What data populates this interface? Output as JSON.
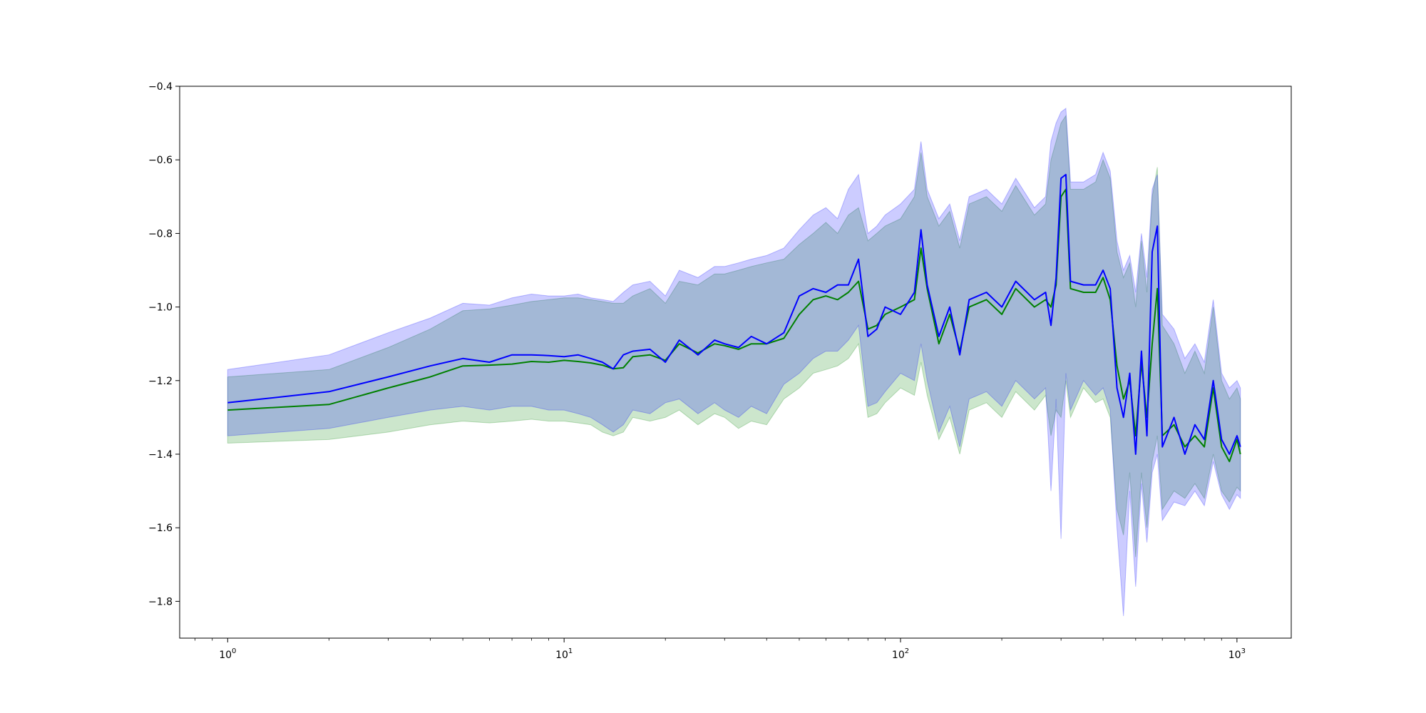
{
  "chart_data": {
    "type": "line",
    "title": "",
    "xlabel": "",
    "ylabel": "",
    "x_scale": "log",
    "xlim": [
      0.72,
      1450
    ],
    "ylim": [
      -1.9,
      -0.4
    ],
    "grid": false,
    "x_ticks": [
      {
        "value": 1,
        "base": "10",
        "exp": "0"
      },
      {
        "value": 10,
        "base": "10",
        "exp": "1"
      },
      {
        "value": 100,
        "base": "10",
        "exp": "2"
      },
      {
        "value": 1000,
        "base": "10",
        "exp": "3"
      }
    ],
    "y_ticks": [
      {
        "value": -0.4,
        "label": "−0.4"
      },
      {
        "value": -0.6,
        "label": "−0.6"
      },
      {
        "value": -0.8,
        "label": "−0.8"
      },
      {
        "value": -1.0,
        "label": "−1.0"
      },
      {
        "value": -1.2,
        "label": "−1.2"
      },
      {
        "value": -1.4,
        "label": "−1.4"
      },
      {
        "value": -1.6,
        "label": "−1.6"
      },
      {
        "value": -1.8,
        "label": "−1.8"
      }
    ],
    "x": [
      1,
      2,
      3,
      4,
      5,
      6,
      7,
      8,
      9,
      10,
      11,
      12,
      13,
      14,
      15,
      16,
      18,
      20,
      22,
      25,
      28,
      30,
      33,
      36,
      40,
      45,
      50,
      55,
      60,
      65,
      70,
      75,
      80,
      85,
      90,
      100,
      110,
      115,
      120,
      130,
      140,
      150,
      160,
      180,
      200,
      220,
      250,
      270,
      280,
      290,
      300,
      310,
      320,
      350,
      380,
      400,
      420,
      440,
      460,
      480,
      500,
      520,
      540,
      560,
      580,
      600,
      650,
      700,
      750,
      800,
      850,
      900,
      950,
      1000,
      1024
    ],
    "series": [
      {
        "color": "#008000",
        "fill_color": "#008000",
        "fill_opacity": 0.2,
        "values": [
          -1.28,
          -1.265,
          -1.22,
          -1.19,
          -1.16,
          -1.158,
          -1.155,
          -1.148,
          -1.15,
          -1.145,
          -1.148,
          -1.152,
          -1.158,
          -1.168,
          -1.165,
          -1.135,
          -1.13,
          -1.145,
          -1.1,
          -1.125,
          -1.1,
          -1.105,
          -1.115,
          -1.1,
          -1.1,
          -1.085,
          -1.02,
          -0.98,
          -0.97,
          -0.98,
          -0.96,
          -0.93,
          -1.06,
          -1.05,
          -1.02,
          -1.0,
          -0.98,
          -0.84,
          -0.95,
          -1.1,
          -1.02,
          -1.12,
          -1.0,
          -0.98,
          -1.02,
          -0.95,
          -1.0,
          -0.98,
          -1.0,
          -0.94,
          -0.7,
          -0.68,
          -0.95,
          -0.96,
          -0.96,
          -0.92,
          -0.98,
          -1.16,
          -1.25,
          -1.2,
          -1.35,
          -1.15,
          -1.3,
          -1.1,
          -0.95,
          -1.35,
          -1.32,
          -1.38,
          -1.35,
          -1.38,
          -1.22,
          -1.38,
          -1.42,
          -1.36,
          -1.4
        ],
        "lower": [
          -1.37,
          -1.36,
          -1.34,
          -1.32,
          -1.31,
          -1.315,
          -1.31,
          -1.305,
          -1.31,
          -1.31,
          -1.315,
          -1.32,
          -1.34,
          -1.35,
          -1.34,
          -1.3,
          -1.31,
          -1.3,
          -1.28,
          -1.32,
          -1.29,
          -1.3,
          -1.33,
          -1.31,
          -1.32,
          -1.25,
          -1.22,
          -1.18,
          -1.17,
          -1.16,
          -1.14,
          -1.1,
          -1.3,
          -1.29,
          -1.26,
          -1.22,
          -1.24,
          -1.15,
          -1.24,
          -1.36,
          -1.3,
          -1.4,
          -1.28,
          -1.26,
          -1.3,
          -1.23,
          -1.28,
          -1.24,
          -1.35,
          -1.28,
          -1.3,
          -1.2,
          -1.3,
          -1.22,
          -1.26,
          -1.25,
          -1.3,
          -1.55,
          -1.62,
          -1.45,
          -1.68,
          -1.45,
          -1.6,
          -1.42,
          -1.35,
          -1.55,
          -1.5,
          -1.52,
          -1.48,
          -1.52,
          -1.4,
          -1.5,
          -1.53,
          -1.49,
          -1.5
        ],
        "upper": [
          -1.19,
          -1.17,
          -1.11,
          -1.06,
          -1.01,
          -1.005,
          -0.995,
          -0.985,
          -0.98,
          -0.975,
          -0.975,
          -0.98,
          -0.985,
          -0.99,
          -0.99,
          -0.97,
          -0.95,
          -0.99,
          -0.93,
          -0.94,
          -0.91,
          -0.91,
          -0.9,
          -0.89,
          -0.88,
          -0.87,
          -0.83,
          -0.8,
          -0.77,
          -0.8,
          -0.75,
          -0.73,
          -0.82,
          -0.8,
          -0.78,
          -0.76,
          -0.7,
          -0.58,
          -0.7,
          -0.78,
          -0.74,
          -0.84,
          -0.72,
          -0.7,
          -0.74,
          -0.67,
          -0.75,
          -0.72,
          -0.6,
          -0.55,
          -0.5,
          -0.48,
          -0.68,
          -0.68,
          -0.66,
          -0.6,
          -0.65,
          -0.85,
          -0.92,
          -0.88,
          -1.0,
          -0.82,
          -0.96,
          -0.7,
          -0.62,
          -1.05,
          -1.1,
          -1.18,
          -1.12,
          -1.18,
          -1.0,
          -1.2,
          -1.25,
          -1.22,
          -1.25
        ]
      },
      {
        "color": "#0000ff",
        "fill_color": "#0000ff",
        "fill_opacity": 0.2,
        "values": [
          -1.26,
          -1.23,
          -1.19,
          -1.16,
          -1.14,
          -1.15,
          -1.13,
          -1.13,
          -1.132,
          -1.135,
          -1.13,
          -1.14,
          -1.15,
          -1.168,
          -1.13,
          -1.12,
          -1.115,
          -1.15,
          -1.09,
          -1.13,
          -1.09,
          -1.1,
          -1.11,
          -1.08,
          -1.1,
          -1.07,
          -0.97,
          -0.95,
          -0.96,
          -0.94,
          -0.94,
          -0.87,
          -1.08,
          -1.06,
          -1.0,
          -1.02,
          -0.96,
          -0.79,
          -0.94,
          -1.08,
          -1.0,
          -1.13,
          -0.98,
          -0.96,
          -1.0,
          -0.93,
          -0.98,
          -0.96,
          -1.05,
          -0.92,
          -0.65,
          -0.64,
          -0.93,
          -0.94,
          -0.94,
          -0.9,
          -0.95,
          -1.22,
          -1.3,
          -1.18,
          -1.4,
          -1.12,
          -1.35,
          -0.85,
          -0.78,
          -1.38,
          -1.3,
          -1.4,
          -1.32,
          -1.36,
          -1.2,
          -1.36,
          -1.4,
          -1.35,
          -1.38
        ],
        "lower": [
          -1.35,
          -1.33,
          -1.3,
          -1.28,
          -1.27,
          -1.28,
          -1.27,
          -1.27,
          -1.28,
          -1.28,
          -1.29,
          -1.3,
          -1.32,
          -1.34,
          -1.32,
          -1.28,
          -1.29,
          -1.26,
          -1.25,
          -1.29,
          -1.26,
          -1.28,
          -1.3,
          -1.27,
          -1.29,
          -1.21,
          -1.18,
          -1.14,
          -1.12,
          -1.12,
          -1.09,
          -1.05,
          -1.27,
          -1.26,
          -1.23,
          -1.18,
          -1.2,
          -1.1,
          -1.2,
          -1.34,
          -1.27,
          -1.38,
          -1.25,
          -1.23,
          -1.27,
          -1.2,
          -1.25,
          -1.22,
          -1.5,
          -1.25,
          -1.63,
          -1.18,
          -1.28,
          -1.2,
          -1.24,
          -1.22,
          -1.28,
          -1.6,
          -1.84,
          -1.5,
          -1.76,
          -1.48,
          -1.64,
          -1.45,
          -1.4,
          -1.58,
          -1.53,
          -1.54,
          -1.5,
          -1.54,
          -1.42,
          -1.51,
          -1.55,
          -1.51,
          -1.52
        ],
        "upper": [
          -1.17,
          -1.13,
          -1.07,
          -1.03,
          -0.99,
          -0.995,
          -0.975,
          -0.965,
          -0.97,
          -0.97,
          -0.965,
          -0.975,
          -0.98,
          -0.985,
          -0.96,
          -0.94,
          -0.93,
          -0.97,
          -0.9,
          -0.92,
          -0.89,
          -0.89,
          -0.88,
          -0.87,
          -0.86,
          -0.84,
          -0.79,
          -0.75,
          -0.73,
          -0.76,
          -0.68,
          -0.64,
          -0.8,
          -0.78,
          -0.75,
          -0.72,
          -0.68,
          -0.55,
          -0.68,
          -0.76,
          -0.72,
          -0.82,
          -0.7,
          -0.68,
          -0.72,
          -0.65,
          -0.73,
          -0.7,
          -0.55,
          -0.5,
          -0.47,
          -0.46,
          -0.66,
          -0.66,
          -0.64,
          -0.58,
          -0.63,
          -0.82,
          -0.9,
          -0.86,
          -0.96,
          -0.8,
          -0.92,
          -0.68,
          -0.64,
          -1.02,
          -1.06,
          -1.14,
          -1.1,
          -1.15,
          -0.98,
          -1.18,
          -1.22,
          -1.2,
          -1.22
        ]
      }
    ]
  }
}
